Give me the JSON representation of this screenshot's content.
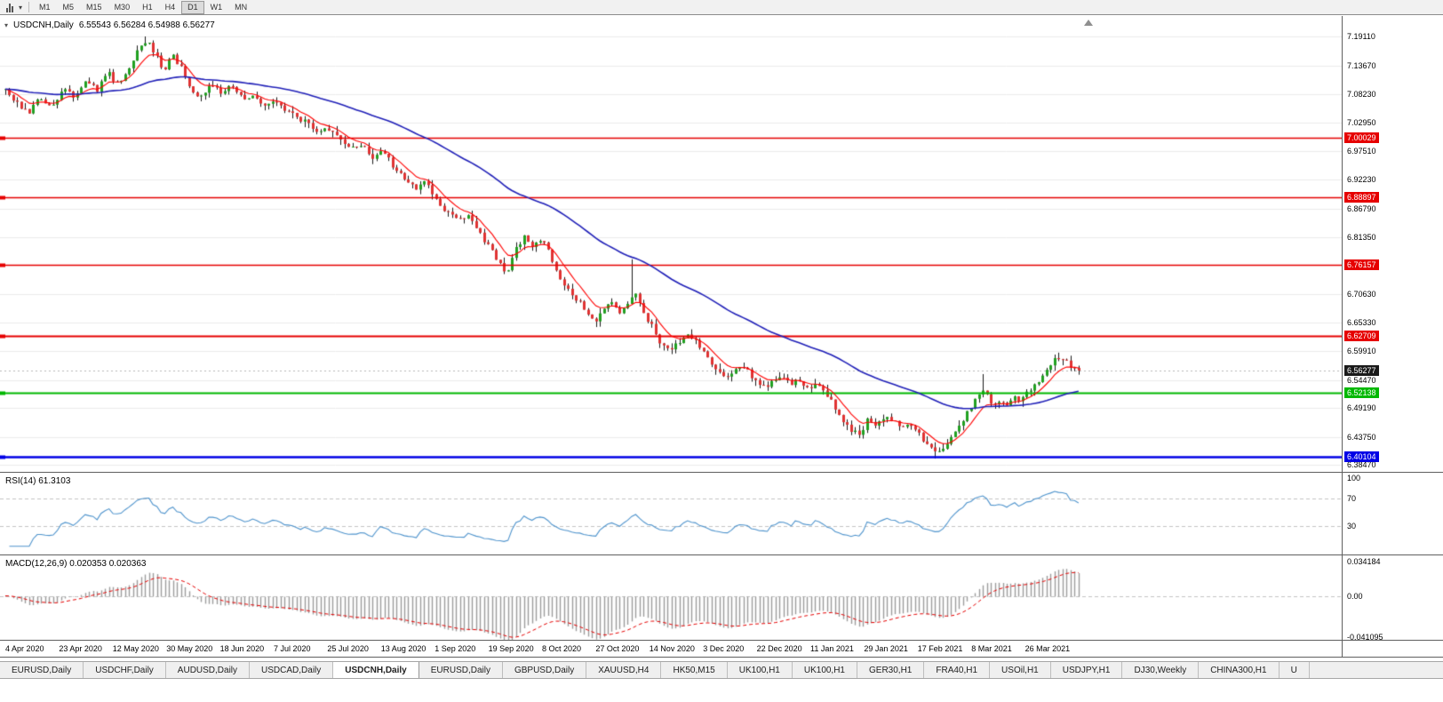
{
  "toolbar": {
    "timeframes": [
      {
        "label": "M1",
        "active": false
      },
      {
        "label": "M5",
        "active": false
      },
      {
        "label": "M15",
        "active": false
      },
      {
        "label": "M30",
        "active": false
      },
      {
        "label": "H1",
        "active": false
      },
      {
        "label": "H4",
        "active": false
      },
      {
        "label": "D1",
        "active": true
      },
      {
        "label": "W1",
        "active": false
      },
      {
        "label": "MN",
        "active": false
      }
    ]
  },
  "header": {
    "symbol": "USDCNH,Daily",
    "ohlc": "6.55543 6.56284 6.54988 6.56277"
  },
  "panels": {
    "rsi_label": "RSI(14) 61.3103",
    "macd_label": "MACD(12,26,9) 0.020353 0.020363"
  },
  "tabs": [
    {
      "label": "EURUSD,Daily",
      "active": false
    },
    {
      "label": "USDCHF,Daily",
      "active": false
    },
    {
      "label": "AUDUSD,Daily",
      "active": false
    },
    {
      "label": "USDCAD,Daily",
      "active": false
    },
    {
      "label": "USDCNH,Daily",
      "active": true
    },
    {
      "label": "EURUSD,Daily",
      "active": false
    },
    {
      "label": "GBPUSD,Daily",
      "active": false
    },
    {
      "label": "XAUUSD,H4",
      "active": false
    },
    {
      "label": "HK50,M15",
      "active": false
    },
    {
      "label": "UK100,H1",
      "active": false
    },
    {
      "label": "UK100,H1",
      "active": false
    },
    {
      "label": "GER30,H1",
      "active": false
    },
    {
      "label": "FRA40,H1",
      "active": false
    },
    {
      "label": "USOil,H1",
      "active": false
    },
    {
      "label": "USDJPY,H1",
      "active": false
    },
    {
      "label": "DJ30,Weekly",
      "active": false
    },
    {
      "label": "CHINA300,H1",
      "active": false
    },
    {
      "label": "U",
      "active": false
    }
  ],
  "chart_data": {
    "type": "candlestick",
    "symbol": "USDCNH",
    "timeframe": "Daily",
    "title": "USDCNH,Daily",
    "ohlc_line": {
      "open": 6.55543,
      "high": 6.56284,
      "low": 6.54988,
      "close": 6.56277
    },
    "current_price": 6.56277,
    "current_price_label": "6.56277",
    "price_range": {
      "max": 7.23,
      "min": 6.372
    },
    "y_ticks": [
      7.1911,
      7.1367,
      7.0823,
      7.0295,
      6.9751,
      6.9223,
      6.8679,
      6.8135,
      6.7063,
      6.6533,
      6.5991,
      6.5447,
      6.4919,
      6.4375,
      6.3847
    ],
    "levels": [
      {
        "value": 7.00029,
        "label": "7.00029",
        "color": "#e60000",
        "width": 1.4
      },
      {
        "value": 6.88897,
        "label": "6.88897",
        "color": "#e60000",
        "width": 1.4
      },
      {
        "value": 6.76157,
        "label": "6.76157",
        "color": "#e60000",
        "width": 1.4
      },
      {
        "value": 6.62709,
        "label": "6.62709",
        "color": "#e60000",
        "width": 2
      },
      {
        "value": 6.52138,
        "label": "6.52138",
        "color": "#00b800",
        "width": 2
      },
      {
        "value": 6.40104,
        "label": "6.40104",
        "color": "#0000e6",
        "width": 2.4
      }
    ],
    "x_labels": [
      "4 Apr 2020",
      "23 Apr 2020",
      "12 May 2020",
      "30 May 2020",
      "18 Jun 2020",
      "7 Jul 2020",
      "25 Jul 2020",
      "13 Aug 2020",
      "1 Sep 2020",
      "19 Sep 2020",
      "8 Oct 2020",
      "27 Oct 2020",
      "14 Nov 2020",
      "3 Dec 2020",
      "22 Dec 2020",
      "11 Jan 2021",
      "29 Jan 2021",
      "17 Feb 2021",
      "8 Mar 2021",
      "26 Mar 2021"
    ],
    "candle_count": 270,
    "candle_spacing": 4.49,
    "x_offset": 6,
    "label_spacing_px": 60.4,
    "colors": {
      "bull": "#21a121",
      "bear": "#e03232",
      "wick": "#1a1a1a",
      "grid": "#ececec"
    },
    "close_waypoints": [
      [
        0.0,
        7.088
      ],
      [
        0.012,
        7.062
      ],
      [
        0.022,
        7.046
      ],
      [
        0.032,
        7.076
      ],
      [
        0.042,
        7.06
      ],
      [
        0.055,
        7.092
      ],
      [
        0.065,
        7.078
      ],
      [
        0.075,
        7.112
      ],
      [
        0.085,
        7.09
      ],
      [
        0.095,
        7.125
      ],
      [
        0.105,
        7.1
      ],
      [
        0.115,
        7.135
      ],
      [
        0.125,
        7.17
      ],
      [
        0.132,
        7.186
      ],
      [
        0.14,
        7.155
      ],
      [
        0.148,
        7.128
      ],
      [
        0.155,
        7.158
      ],
      [
        0.163,
        7.135
      ],
      [
        0.172,
        7.095
      ],
      [
        0.182,
        7.075
      ],
      [
        0.192,
        7.105
      ],
      [
        0.202,
        7.085
      ],
      [
        0.212,
        7.1
      ],
      [
        0.222,
        7.072
      ],
      [
        0.232,
        7.082
      ],
      [
        0.242,
        7.06
      ],
      [
        0.252,
        7.07
      ],
      [
        0.262,
        7.05
      ],
      [
        0.272,
        7.04
      ],
      [
        0.282,
        7.028
      ],
      [
        0.292,
        7.01
      ],
      [
        0.302,
        7.018
      ],
      [
        0.312,
        6.995
      ],
      [
        0.322,
        6.978
      ],
      [
        0.332,
        6.99
      ],
      [
        0.342,
        6.962
      ],
      [
        0.352,
        6.975
      ],
      [
        0.362,
        6.945
      ],
      [
        0.372,
        6.922
      ],
      [
        0.382,
        6.905
      ],
      [
        0.392,
        6.918
      ],
      [
        0.402,
        6.882
      ],
      [
        0.412,
        6.86
      ],
      [
        0.422,
        6.845
      ],
      [
        0.432,
        6.858
      ],
      [
        0.442,
        6.822
      ],
      [
        0.452,
        6.79
      ],
      [
        0.46,
        6.762
      ],
      [
        0.468,
        6.748
      ],
      [
        0.476,
        6.792
      ],
      [
        0.484,
        6.815
      ],
      [
        0.492,
        6.795
      ],
      [
        0.5,
        6.808
      ],
      [
        0.508,
        6.778
      ],
      [
        0.516,
        6.742
      ],
      [
        0.524,
        6.712
      ],
      [
        0.532,
        6.695
      ],
      [
        0.54,
        6.68
      ],
      [
        0.548,
        6.655
      ],
      [
        0.556,
        6.672
      ],
      [
        0.564,
        6.7
      ],
      [
        0.572,
        6.668
      ],
      [
        0.58,
        6.688
      ],
      [
        0.588,
        6.71
      ],
      [
        0.596,
        6.668
      ],
      [
        0.604,
        6.64
      ],
      [
        0.612,
        6.608
      ],
      [
        0.62,
        6.598
      ],
      [
        0.628,
        6.618
      ],
      [
        0.636,
        6.634
      ],
      [
        0.644,
        6.616
      ],
      [
        0.652,
        6.594
      ],
      [
        0.66,
        6.572
      ],
      [
        0.668,
        6.548
      ],
      [
        0.676,
        6.558
      ],
      [
        0.684,
        6.572
      ],
      [
        0.692,
        6.56
      ],
      [
        0.7,
        6.54
      ],
      [
        0.708,
        6.528
      ],
      [
        0.716,
        6.542
      ],
      [
        0.724,
        6.554
      ],
      [
        0.732,
        6.538
      ],
      [
        0.74,
        6.545
      ],
      [
        0.748,
        6.528
      ],
      [
        0.756,
        6.538
      ],
      [
        0.764,
        6.518
      ],
      [
        0.772,
        6.498
      ],
      [
        0.78,
        6.468
      ],
      [
        0.788,
        6.448
      ],
      [
        0.796,
        6.442
      ],
      [
        0.804,
        6.472
      ],
      [
        0.812,
        6.462
      ],
      [
        0.82,
        6.478
      ],
      [
        0.828,
        6.468
      ],
      [
        0.836,
        6.452
      ],
      [
        0.844,
        6.462
      ],
      [
        0.852,
        6.44
      ],
      [
        0.86,
        6.42
      ],
      [
        0.868,
        6.408
      ],
      [
        0.874,
        6.415
      ],
      [
        0.88,
        6.432
      ],
      [
        0.886,
        6.452
      ],
      [
        0.892,
        6.47
      ],
      [
        0.898,
        6.488
      ],
      [
        0.904,
        6.512
      ],
      [
        0.91,
        6.532
      ],
      [
        0.916,
        6.508
      ],
      [
        0.922,
        6.495
      ],
      [
        0.928,
        6.504
      ],
      [
        0.934,
        6.498
      ],
      [
        0.94,
        6.512
      ],
      [
        0.946,
        6.505
      ],
      [
        0.952,
        6.52
      ],
      [
        0.958,
        6.532
      ],
      [
        0.964,
        6.548
      ],
      [
        0.97,
        6.562
      ],
      [
        0.976,
        6.578
      ],
      [
        0.982,
        6.59
      ],
      [
        0.988,
        6.58
      ],
      [
        0.994,
        6.57
      ],
      [
        1.0,
        6.563
      ]
    ],
    "spikes": [
      {
        "t": 0.13,
        "high": 7.1915
      },
      {
        "t": 0.585,
        "high": 6.772
      },
      {
        "t": 0.868,
        "low": 6.397
      },
      {
        "t": 0.91,
        "high": 6.556
      }
    ],
    "indicators": {
      "ma_fast": {
        "period": 8,
        "color": "#ff0000"
      },
      "ma_slow": {
        "period": 55,
        "color": "#2020b8"
      },
      "rsi": {
        "period": 14,
        "value": 61.3103,
        "color": "#4f94cd",
        "levels": [
          70,
          30
        ],
        "scale": [
          {
            "label": "100",
            "value": 100
          },
          {
            "label": "70",
            "value": 70
          },
          {
            "label": "30",
            "value": 30
          }
        ]
      },
      "macd": {
        "fast": 12,
        "slow": 26,
        "signal": 9,
        "main": 0.020353,
        "signal_value": 0.020363,
        "histogram_color": "#9c9c9c",
        "signal_color": "#e60000",
        "scale_max": 0.04,
        "scale_min": -0.0435,
        "scale": [
          {
            "label": "0.034184",
            "value": 0.034184
          },
          {
            "label": "0.00",
            "value": 0.0
          },
          {
            "label": "-0.041095",
            "value": -0.041095
          }
        ]
      }
    }
  }
}
